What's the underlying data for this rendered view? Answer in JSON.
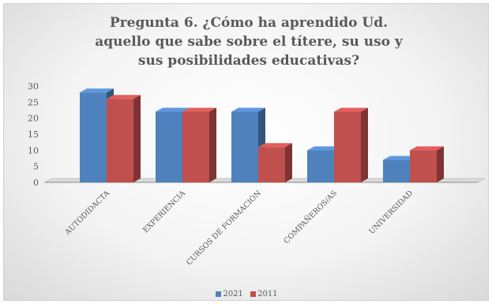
{
  "title_lines": [
    "Pregunta 6. ¿Cómo ha aprendido Ud.",
    "aquello que sabe sobre el títere, su uso y",
    "sus posibilidades educativas?"
  ],
  "legend": [
    "2021",
    "2011"
  ],
  "colors": {
    "series_2021": "#4f81bd",
    "series_2011": "#c0504d"
  },
  "chart_data": {
    "type": "bar",
    "subtype": "3d-clustered-column",
    "title": "Pregunta 6. ¿Cómo ha aprendido Ud. aquello que sabe sobre el títere, su uso y sus posibilidades educativas?",
    "categories": [
      "AUTODIDACTA",
      "EXPERIENCIA",
      "CURSOS DE FORMACIÓN",
      "COMPAÑEROS/AS",
      "UNIVERSIDAD"
    ],
    "series": [
      {
        "name": "2021",
        "values": [
          28,
          22,
          22,
          10,
          7
        ]
      },
      {
        "name": "2011",
        "values": [
          26,
          22,
          11,
          22,
          10
        ]
      }
    ],
    "ylim": [
      0,
      30
    ],
    "yticks": [
      0,
      5,
      10,
      15,
      20,
      25,
      30
    ],
    "legend_position": "bottom",
    "grid": false
  }
}
